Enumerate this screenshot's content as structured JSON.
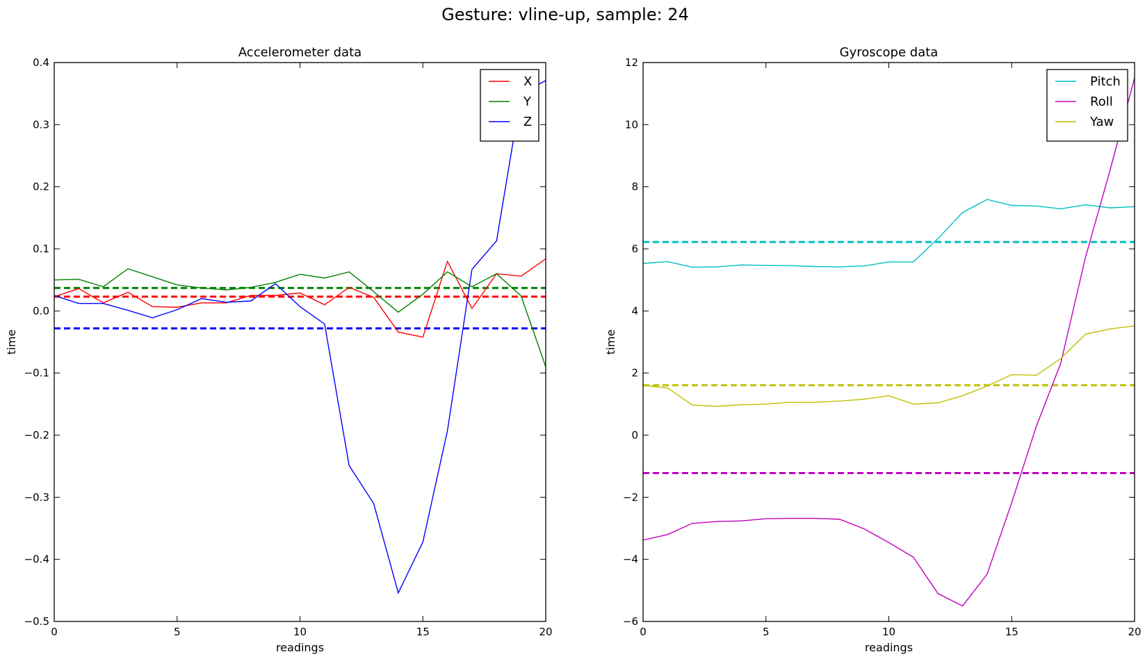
{
  "figure": {
    "suptitle": "Gesture: vline-up, sample: 24"
  },
  "chart_data": [
    {
      "type": "line",
      "title": "Accelerometer data",
      "xlabel": "readings",
      "ylabel": "time",
      "xlim": [
        0,
        20
      ],
      "ylim": [
        -0.5,
        0.4
      ],
      "xticks": [
        0,
        5,
        10,
        15,
        20
      ],
      "xtick_labels": [
        "0",
        "5",
        "10",
        "15",
        "20"
      ],
      "yticks": [
        -0.5,
        -0.4,
        -0.3,
        -0.2,
        -0.1,
        0.0,
        0.1,
        0.2,
        0.3,
        0.4
      ],
      "ytick_labels": [
        "−0.5",
        "−0.4",
        "−0.3",
        "−0.2",
        "−0.1",
        "0.0",
        "0.1",
        "0.2",
        "0.3",
        "0.4"
      ],
      "grid": false,
      "legend_position": "top-right",
      "x": [
        0,
        1,
        2,
        3,
        4,
        5,
        6,
        7,
        8,
        9,
        10,
        11,
        12,
        13,
        14,
        15,
        16,
        17,
        18,
        19,
        20
      ],
      "series": [
        {
          "name": "X",
          "color": "#ff0000",
          "values": [
            0.023,
            0.036,
            0.013,
            0.03,
            0.007,
            0.006,
            0.013,
            0.013,
            0.025,
            0.025,
            0.029,
            0.01,
            0.038,
            0.022,
            -0.034,
            -0.042,
            0.08,
            0.004,
            0.06,
            0.056,
            0.084
          ]
        },
        {
          "name": "Y",
          "color": "#008000",
          "values": [
            0.05,
            0.051,
            0.039,
            0.068,
            0.055,
            0.042,
            0.037,
            0.034,
            0.038,
            0.046,
            0.059,
            0.053,
            0.063,
            0.031,
            -0.002,
            0.027,
            0.063,
            0.039,
            0.06,
            0.024,
            -0.09
          ]
        },
        {
          "name": "Z",
          "color": "#0000ff",
          "values": [
            0.025,
            0.012,
            0.012,
            0.001,
            -0.011,
            0.002,
            0.02,
            0.014,
            0.016,
            0.044,
            0.007,
            -0.021,
            -0.249,
            -0.31,
            -0.454,
            -0.372,
            -0.193,
            0.067,
            0.113,
            0.35,
            0.371
          ]
        }
      ],
      "mean_lines": [
        {
          "series": "X",
          "color": "#ff0000",
          "value": 0.023
        },
        {
          "series": "Y",
          "color": "#008000",
          "value": 0.037
        },
        {
          "series": "Z",
          "color": "#0000ff",
          "value": -0.028
        }
      ]
    },
    {
      "type": "line",
      "title": "Gyroscope data",
      "xlabel": "readings",
      "ylabel": "time",
      "xlim": [
        0,
        20
      ],
      "ylim": [
        -6,
        12
      ],
      "xticks": [
        0,
        5,
        10,
        15,
        20
      ],
      "xtick_labels": [
        "0",
        "5",
        "10",
        "15",
        "20"
      ],
      "yticks": [
        -6,
        -4,
        -2,
        0,
        2,
        4,
        6,
        8,
        10,
        12
      ],
      "ytick_labels": [
        "−6",
        "−4",
        "−2",
        "0",
        "2",
        "4",
        "6",
        "8",
        "10",
        "12"
      ],
      "grid": false,
      "legend_position": "top-right",
      "x": [
        0,
        1,
        2,
        3,
        4,
        5,
        6,
        7,
        8,
        9,
        10,
        11,
        12,
        13,
        14,
        15,
        16,
        17,
        18,
        19,
        20
      ],
      "series": [
        {
          "name": "Pitch",
          "color": "#00bfbf",
          "values": [
            5.53,
            5.59,
            5.41,
            5.42,
            5.48,
            5.47,
            5.46,
            5.43,
            5.42,
            5.45,
            5.58,
            5.58,
            6.33,
            7.17,
            7.59,
            7.4,
            7.38,
            7.29,
            7.42,
            7.32,
            7.36
          ]
        },
        {
          "name": "Roll",
          "color": "#bf00bf",
          "values": [
            -3.38,
            -3.2,
            -2.84,
            -2.78,
            -2.76,
            -2.69,
            -2.68,
            -2.68,
            -2.71,
            -3.02,
            -3.46,
            -3.93,
            -5.1,
            -5.5,
            -4.48,
            -2.17,
            0.28,
            2.32,
            5.72,
            8.53,
            11.51
          ]
        },
        {
          "name": "Yaw",
          "color": "#bfbf00",
          "values": [
            1.6,
            1.52,
            0.97,
            0.93,
            0.98,
            1.0,
            1.06,
            1.06,
            1.1,
            1.16,
            1.27,
            1.0,
            1.04,
            1.27,
            1.58,
            1.95,
            1.93,
            2.47,
            3.25,
            3.42,
            3.52
          ]
        }
      ],
      "mean_lines": [
        {
          "series": "Pitch",
          "color": "#00bfbf",
          "value": 6.22
        },
        {
          "series": "Roll",
          "color": "#bf00bf",
          "value": -1.22
        },
        {
          "series": "Yaw",
          "color": "#bfbf00",
          "value": 1.61
        }
      ]
    }
  ]
}
